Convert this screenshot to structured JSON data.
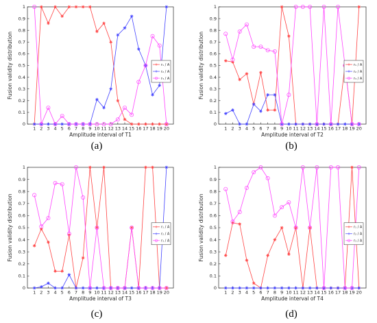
{
  "figure": {
    "colors": {
      "red": "#ff4040",
      "blue": "#4040ff",
      "magenta": "#ff40ff"
    },
    "legend_position": "right"
  },
  "chart_data": [
    {
      "type": "line",
      "caption": "(a)",
      "xlabel": "Amplitude interval of T1",
      "ylabel": "Fusion validity distribution",
      "x": [
        1,
        2,
        3,
        4,
        5,
        6,
        7,
        8,
        9,
        10,
        11,
        12,
        13,
        14,
        15,
        16,
        17,
        18,
        19,
        20
      ],
      "xlim": [
        0,
        21
      ],
      "ylim": [
        0,
        1
      ],
      "yticks": [
        "0",
        "0.1",
        "0.2",
        "0.3",
        "0.4",
        "0.5",
        "0.6",
        "0.7",
        "0.8",
        "0.9",
        "1"
      ],
      "series": [
        {
          "name": "r₁ / A",
          "marker": "star",
          "color": "#ff4040",
          "values": [
            0,
            1,
            0.86,
            1,
            0.92,
            1,
            1,
            1,
            1,
            0.79,
            0.86,
            0.7,
            0.2,
            0.04,
            0,
            0,
            0,
            0,
            0,
            0
          ]
        },
        {
          "name": "r₂ / A",
          "marker": "star",
          "color": "#4040ff",
          "values": [
            0,
            0,
            0,
            0,
            0,
            0,
            0,
            0,
            0,
            0.21,
            0.14,
            0.3,
            0.76,
            0.82,
            0.92,
            0.64,
            0.5,
            0.25,
            0.33,
            1
          ]
        },
        {
          "name": "r₃ / A",
          "marker": "circle",
          "color": "#ff40ff",
          "values": [
            1,
            0,
            0.14,
            0,
            0.07,
            0,
            0,
            0,
            0,
            0,
            0,
            0,
            0.04,
            0.14,
            0.08,
            0.36,
            0.5,
            0.75,
            0.67,
            0
          ]
        }
      ]
    },
    {
      "type": "line",
      "caption": "(b)",
      "xlabel": "Amplitude interval of T2",
      "ylabel": "Fusion validity distribution",
      "x": [
        1,
        2,
        3,
        4,
        5,
        6,
        7,
        8,
        9,
        10,
        11,
        12,
        13,
        14,
        15,
        16,
        17,
        18,
        19,
        20
      ],
      "xlim": [
        0,
        21
      ],
      "ylim": [
        0,
        1
      ],
      "yticks": [
        "0",
        "0.1",
        "0.2",
        "0.3",
        "0.4",
        "0.5",
        "0.6",
        "0.7",
        "0.8",
        "0.9",
        "1"
      ],
      "series": [
        {
          "name": "r₁ / A",
          "marker": "star",
          "color": "#ff4040",
          "values": [
            0.54,
            0.53,
            0.38,
            0.43,
            0.17,
            0.44,
            0.12,
            0.12,
            1,
            0.75,
            0,
            0,
            0,
            0,
            0,
            0,
            0,
            0.5,
            0,
            1
          ]
        },
        {
          "name": "r₂ / A",
          "marker": "star",
          "color": "#4040ff",
          "values": [
            0.09,
            0.12,
            0,
            0,
            0.17,
            0.11,
            0.25,
            0.25,
            0,
            0,
            0,
            0,
            0,
            0,
            0,
            0,
            0,
            0,
            0,
            0
          ]
        },
        {
          "name": "r₃ / A",
          "marker": "circle",
          "color": "#ff40ff",
          "values": [
            0.77,
            0.55,
            0.79,
            0.85,
            0.66,
            0.66,
            0.63,
            0.62,
            0,
            0.25,
            1,
            1,
            1,
            0,
            1,
            0,
            1,
            0.5,
            0,
            0
          ]
        }
      ]
    },
    {
      "type": "line",
      "caption": "(c)",
      "xlabel": "Amplitude interval of T3",
      "ylabel": "Fusion validity distribution",
      "x": [
        1,
        2,
        3,
        4,
        5,
        6,
        7,
        8,
        9,
        10,
        11,
        12,
        13,
        14,
        15,
        16,
        17,
        18,
        19,
        20
      ],
      "xlim": [
        0,
        21
      ],
      "ylim": [
        0,
        1
      ],
      "yticks": [
        "0",
        "0.1",
        "0.2",
        "0.3",
        "0.4",
        "0.5",
        "0.6",
        "0.7",
        "0.8",
        "0.9",
        "1"
      ],
      "series": [
        {
          "name": "r₁ / A",
          "marker": "star",
          "color": "#ff4040",
          "values": [
            0.35,
            0.49,
            0.38,
            0.14,
            0.14,
            0.44,
            0,
            0.25,
            1,
            0.5,
            1,
            0,
            0,
            0,
            0.5,
            0,
            1,
            1,
            0,
            0
          ]
        },
        {
          "name": "r₂ / A",
          "marker": "star",
          "color": "#4040ff",
          "values": [
            0,
            0.01,
            0.04,
            0,
            0,
            0.11,
            0,
            0,
            0,
            0,
            0,
            0,
            0,
            0,
            0,
            0,
            0,
            0,
            0,
            1
          ]
        },
        {
          "name": "r₃ / A",
          "marker": "circle",
          "color": "#ff40ff",
          "values": [
            0.77,
            0.51,
            0.58,
            0.87,
            0.86,
            0.45,
            1,
            0.75,
            0,
            0.5,
            0,
            0,
            0,
            0,
            0.5,
            0,
            0,
            0,
            0,
            0
          ]
        }
      ]
    },
    {
      "type": "line",
      "caption": "(d)",
      "xlabel": "Amplitude interval of T4",
      "ylabel": "Fusion validity distribution",
      "x": [
        1,
        2,
        3,
        4,
        5,
        6,
        7,
        8,
        9,
        10,
        11,
        12,
        13,
        14,
        15,
        16,
        17,
        18,
        19,
        20
      ],
      "xlim": [
        0,
        21
      ],
      "ylim": [
        0,
        1
      ],
      "yticks": [
        "0",
        "0.1",
        "0.2",
        "0.3",
        "0.4",
        "0.5",
        "0.6",
        "0.7",
        "0.8",
        "0.9",
        "1"
      ],
      "series": [
        {
          "name": "r₁ / A",
          "marker": "star",
          "color": "#ff4040",
          "values": [
            0.27,
            0.54,
            0.53,
            0.23,
            0.04,
            0,
            0.27,
            0.4,
            0.5,
            0.28,
            0.5,
            0,
            0.5,
            0,
            0,
            0,
            0,
            0,
            1,
            0
          ]
        },
        {
          "name": "r₂ / A",
          "marker": "star",
          "color": "#4040ff",
          "values": [
            0,
            0,
            0,
            0,
            0,
            0,
            0,
            0,
            0,
            0,
            0,
            0,
            0,
            0,
            0,
            0,
            0,
            0,
            0,
            0
          ]
        },
        {
          "name": "r₃ / A",
          "marker": "circle",
          "color": "#ff40ff",
          "values": [
            0.82,
            0.55,
            0.63,
            0.83,
            0.96,
            1,
            0.91,
            0.6,
            0.67,
            0.71,
            0.5,
            1,
            0.5,
            1,
            0,
            1,
            1,
            0,
            0,
            1
          ]
        }
      ]
    }
  ]
}
